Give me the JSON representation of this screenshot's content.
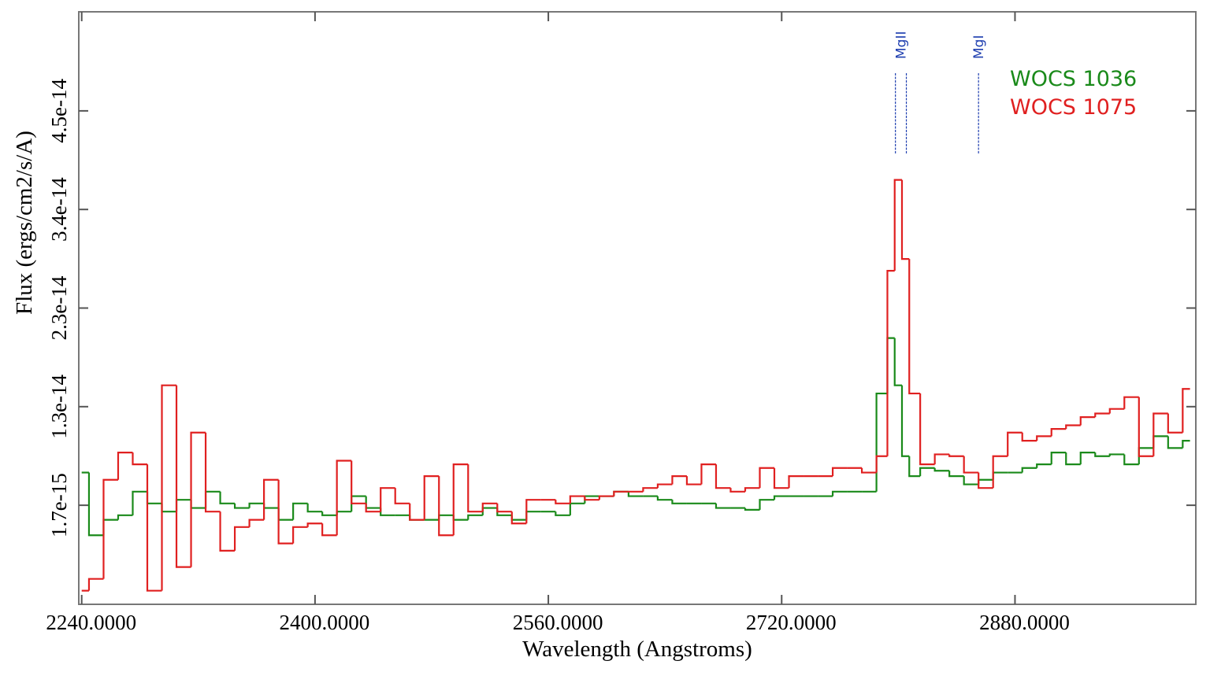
{
  "chart_data": {
    "type": "step",
    "x_label": "Wavelength (Angstroms)",
    "y_label": "Flux (ergs/cm2/s/A)",
    "xlim": [
      2238,
      3004
    ],
    "ylim": [
      -9.2e-15,
      5.6e-14
    ],
    "xticks": [
      {
        "value": 2240,
        "label": "2240.0000"
      },
      {
        "value": 2400,
        "label": "2400.0000"
      },
      {
        "value": 2560,
        "label": "2560.0000"
      },
      {
        "value": 2720,
        "label": "2720.0000"
      },
      {
        "value": 2880,
        "label": "2880.0000"
      }
    ],
    "yticks": [
      {
        "value": 1.7e-15,
        "label": "1.7e-15"
      },
      {
        "value": 1.255e-14,
        "label": "1.3e-14"
      },
      {
        "value": 2.34e-14,
        "label": "2.3e-14"
      },
      {
        "value": 3.425e-14,
        "label": "3.4e-14"
      },
      {
        "value": 4.51e-14,
        "label": "4.5e-14"
      }
    ],
    "legend": "upper right",
    "spectral_lines": [
      {
        "label": "MgII",
        "x": [
          2798,
          2805.5
        ]
      },
      {
        "label": "MgI",
        "x": [
          2855
        ]
      }
    ],
    "x": [
      2240,
      2250,
      2260,
      2270,
      2280,
      2290,
      2300,
      2310,
      2320,
      2330,
      2340,
      2350,
      2360,
      2370,
      2380,
      2390,
      2400,
      2410,
      2420,
      2430,
      2440,
      2450,
      2460,
      2470,
      2480,
      2490,
      2500,
      2510,
      2520,
      2530,
      2540,
      2550,
      2560,
      2570,
      2580,
      2590,
      2600,
      2610,
      2620,
      2630,
      2640,
      2650,
      2660,
      2670,
      2680,
      2690,
      2700,
      2710,
      2720,
      2730,
      2740,
      2750,
      2760,
      2770,
      2780,
      2790,
      2795,
      2800,
      2805,
      2810,
      2820,
      2830,
      2840,
      2850,
      2860,
      2870,
      2880,
      2890,
      2900,
      2910,
      2920,
      2930,
      2940,
      2950,
      2960,
      2970,
      2980,
      2990,
      3000
    ],
    "series": [
      {
        "name": "WOCS 1036",
        "color": "#1a8a1a",
        "values": [
          5.3e-15,
          -1.6e-15,
          1e-16,
          6e-16,
          3.2e-15,
          1.9e-15,
          1e-15,
          2.3e-15,
          1.4e-15,
          3.2e-15,
          1.9e-15,
          1.4e-15,
          1.9e-15,
          1.4e-15,
          1e-16,
          1.9e-15,
          1e-15,
          6e-16,
          1e-15,
          2.7e-15,
          1.4e-15,
          6e-16,
          6e-16,
          1e-16,
          1e-16,
          6e-16,
          1e-16,
          6e-16,
          1.4e-15,
          6e-16,
          1e-16,
          1e-15,
          1e-15,
          6e-16,
          1.9e-15,
          2.7e-15,
          2.7e-15,
          3.2e-15,
          2.7e-15,
          2.7e-15,
          2.3e-15,
          1.9e-15,
          1.9e-15,
          1.9e-15,
          1.4e-15,
          1.4e-15,
          1.2e-15,
          2.3e-15,
          2.7e-15,
          2.7e-15,
          2.7e-15,
          2.7e-15,
          3.2e-15,
          3.2e-15,
          3.2e-15,
          1.4e-14,
          2.01e-14,
          1.49e-14,
          7.1e-15,
          4.9e-15,
          5.8e-15,
          5.5e-15,
          4.9e-15,
          4e-15,
          4.5e-15,
          5.3e-15,
          5.3e-15,
          5.8e-15,
          6.2e-15,
          7.5e-15,
          6.2e-15,
          7.5e-15,
          7.1e-15,
          7.3e-15,
          6.2e-15,
          8e-15,
          9.3e-15,
          8e-15,
          8.8e-15
        ]
      },
      {
        "name": "WOCS 1075",
        "color": "#e02020",
        "values": [
          -7.7e-15,
          -6.4e-15,
          4.5e-15,
          7.5e-15,
          6.2e-15,
          -7.7e-15,
          1.49e-14,
          -5.1e-15,
          9.7e-15,
          1e-15,
          -3.3e-15,
          -7e-16,
          1e-16,
          4.5e-15,
          -2.5e-15,
          -7e-16,
          -3e-16,
          -1.6e-15,
          6.6e-15,
          1.9e-15,
          1e-15,
          3.6e-15,
          1.9e-15,
          1e-16,
          4.9e-15,
          -1.6e-15,
          6.2e-15,
          1e-15,
          1.9e-15,
          1e-15,
          -3e-16,
          2.3e-15,
          2.3e-15,
          1.9e-15,
          2.7e-15,
          2.3e-15,
          2.7e-15,
          3.2e-15,
          3.2e-15,
          3.6e-15,
          4e-15,
          4.9e-15,
          4e-15,
          6.2e-15,
          3.6e-15,
          3.2e-15,
          3.6e-15,
          5.8e-15,
          3.6e-15,
          4.9e-15,
          4.9e-15,
          4.9e-15,
          5.8e-15,
          5.8e-15,
          5.3e-15,
          7.1e-15,
          2.75e-14,
          3.75e-14,
          2.88e-14,
          1.4e-14,
          6.2e-15,
          7.3e-15,
          7.1e-15,
          5.3e-15,
          3.6e-15,
          7.1e-15,
          9.7e-15,
          8.8e-15,
          9.3e-15,
          1.01e-14,
          1.05e-14,
          1.14e-14,
          1.18e-14,
          1.23e-14,
          1.36e-14,
          7.1e-15,
          1.18e-14,
          9.7e-15,
          1.45e-14
        ]
      }
    ]
  }
}
